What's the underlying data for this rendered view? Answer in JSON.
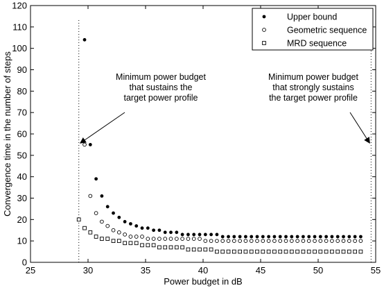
{
  "chart_data": {
    "type": "scatter",
    "xlabel": "Power budget in dB",
    "ylabel": "Convergence time in the number of steps",
    "xlim": [
      25,
      55
    ],
    "ylim": [
      0,
      120
    ],
    "xticks": [
      "25",
      "30",
      "35",
      "40",
      "45",
      "50",
      "55"
    ],
    "yticks": [
      "0",
      "10",
      "20",
      "30",
      "40",
      "50",
      "60",
      "70",
      "80",
      "90",
      "100",
      "110",
      "120"
    ],
    "grid": false,
    "legend_position": "top-right",
    "series": [
      {
        "name": "Upper bound",
        "marker": "filled-circle",
        "color": "#000000",
        "x": [
          29.7,
          30.2,
          30.7,
          31.2,
          31.7,
          32.2,
          32.7,
          33.2,
          33.7,
          34.2,
          34.7,
          35.2,
          35.7,
          36.2,
          36.7,
          37.2,
          37.7,
          38.2,
          38.7,
          39.2,
          39.7,
          40.2,
          40.7,
          41.2,
          41.7,
          42.2,
          42.7,
          43.2,
          43.7,
          44.2,
          44.7,
          45.2,
          45.7,
          46.2,
          46.7,
          47.2,
          47.7,
          48.2,
          48.7,
          49.2,
          49.7,
          50.2,
          50.7,
          51.2,
          51.7,
          52.2,
          52.7,
          53.2,
          53.7
        ],
        "y": [
          104,
          55,
          39,
          31,
          26,
          23,
          21,
          19,
          18,
          17,
          16,
          16,
          15,
          15,
          14,
          14,
          14,
          13,
          13,
          13,
          13,
          13,
          13,
          13,
          12,
          12,
          12,
          12,
          12,
          12,
          12,
          12,
          12,
          12,
          12,
          12,
          12,
          12,
          12,
          12,
          12,
          12,
          12,
          12,
          12,
          12,
          12,
          12,
          12
        ]
      },
      {
        "name": "Geometric sequence",
        "marker": "open-circle",
        "color": "#000000",
        "x": [
          29.7,
          30.2,
          30.7,
          31.2,
          31.7,
          32.2,
          32.7,
          33.2,
          33.7,
          34.2,
          34.7,
          35.2,
          35.7,
          36.2,
          36.7,
          37.2,
          37.7,
          38.2,
          38.7,
          39.2,
          39.7,
          40.2,
          40.7,
          41.2,
          41.7,
          42.2,
          42.7,
          43.2,
          43.7,
          44.2,
          44.7,
          45.2,
          45.7,
          46.2,
          46.7,
          47.2,
          47.7,
          48.2,
          48.7,
          49.2,
          49.7,
          50.2,
          50.7,
          51.2,
          51.7,
          52.2,
          52.7,
          53.2,
          53.7
        ],
        "y": [
          55,
          31,
          23,
          19,
          17,
          15,
          14,
          13,
          12,
          12,
          12,
          11,
          11,
          11,
          11,
          11,
          11,
          11,
          11,
          11,
          11,
          10,
          10,
          10,
          10,
          10,
          10,
          10,
          10,
          10,
          10,
          10,
          10,
          10,
          10,
          10,
          10,
          10,
          10,
          10,
          10,
          10,
          10,
          10,
          10,
          10,
          10,
          10,
          10
        ]
      },
      {
        "name": "MRD sequence",
        "marker": "open-square",
        "color": "#000000",
        "x": [
          29.2,
          29.7,
          30.2,
          30.7,
          31.2,
          31.7,
          32.2,
          32.7,
          33.2,
          33.7,
          34.2,
          34.7,
          35.2,
          35.7,
          36.2,
          36.7,
          37.2,
          37.7,
          38.2,
          38.7,
          39.2,
          39.7,
          40.2,
          40.7,
          41.2,
          41.7,
          42.2,
          42.7,
          43.2,
          43.7,
          44.2,
          44.7,
          45.2,
          45.7,
          46.2,
          46.7,
          47.2,
          47.7,
          48.2,
          48.7,
          49.2,
          49.7,
          50.2,
          50.7,
          51.2,
          51.7,
          52.2,
          52.7,
          53.2,
          53.7
        ],
        "y": [
          20,
          16,
          14,
          12,
          11,
          11,
          10,
          10,
          9,
          9,
          9,
          8,
          8,
          8,
          7,
          7,
          7,
          7,
          7,
          6,
          6,
          6,
          6,
          6,
          5,
          5,
          5,
          5,
          5,
          5,
          5,
          5,
          5,
          5,
          5,
          5,
          5,
          5,
          5,
          5,
          5,
          5,
          5,
          5,
          5,
          5,
          5,
          5,
          5,
          5
        ]
      }
    ],
    "reference_lines": [
      {
        "x": 29.2,
        "style": "dotted"
      },
      {
        "x": 54.6,
        "style": "dotted"
      }
    ],
    "annotations": [
      {
        "lines": [
          "Minimum power budget",
          "that sustains the",
          "target power profile"
        ],
        "arrow_to": [
          29.2,
          57
        ]
      },
      {
        "lines": [
          "Minimum power budget",
          "that strongly sustains",
          "the target power profile"
        ],
        "arrow_to": [
          54.6,
          57
        ]
      }
    ]
  }
}
